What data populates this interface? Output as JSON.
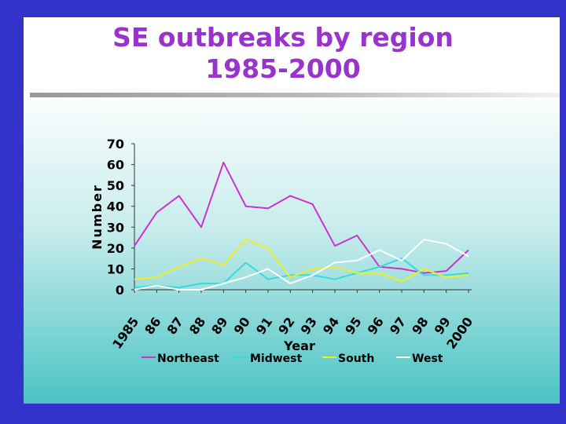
{
  "slide": {
    "title_line1": "SE outbreaks by region",
    "title_line2": "1985-2000"
  },
  "chart_data": {
    "type": "line",
    "title": "SE outbreaks by region 1985-2000",
    "xlabel": "Year",
    "ylabel": "Number",
    "categories": [
      "1985",
      "86",
      "87",
      "88",
      "89",
      "90",
      "91",
      "92",
      "93",
      "94",
      "95",
      "96",
      "97",
      "98",
      "99",
      "2000"
    ],
    "yticks": [
      0,
      10,
      20,
      30,
      40,
      50,
      60,
      70
    ],
    "ylim": [
      0,
      70
    ],
    "grid": false,
    "legend_position": "bottom",
    "series": [
      {
        "name": "Northeast",
        "color": "#cc33cc",
        "values": [
          21,
          37,
          45,
          30,
          61,
          40,
          39,
          45,
          41,
          21,
          26,
          11,
          10,
          8,
          9,
          19
        ]
      },
      {
        "name": "Midwest",
        "color": "#33dddd",
        "values": [
          1,
          2,
          1,
          3,
          3,
          13,
          5,
          7,
          7,
          5,
          8,
          11,
          15,
          7,
          7,
          8
        ]
      },
      {
        "name": "South",
        "color": "#eeee22",
        "values": [
          5,
          6,
          11,
          15,
          12,
          24,
          20,
          6,
          10,
          11,
          8,
          8,
          4,
          10,
          6,
          7
        ]
      },
      {
        "name": "West",
        "color": "#ffffff",
        "values": [
          0,
          2,
          0,
          0,
          3,
          6,
          10,
          3,
          7,
          13,
          14,
          19,
          14,
          24,
          22,
          16
        ]
      }
    ]
  }
}
